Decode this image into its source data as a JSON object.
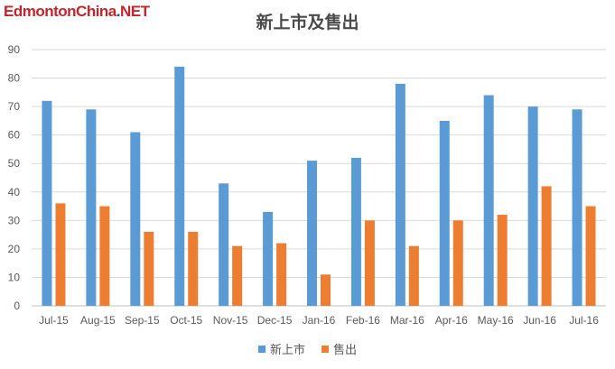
{
  "watermark": {
    "main": "EdmontonChina",
    "dot": ".",
    "suffix": "NET"
  },
  "colors": {
    "series1": "#5b9bd5",
    "series2": "#ed7d31",
    "grid": "#d9d9d9",
    "axis": "#bfbfbf"
  },
  "chart_data": {
    "type": "bar",
    "title": "新上市及售出",
    "xlabel": "",
    "ylabel": "",
    "ylim": [
      0,
      90
    ],
    "yticks": [
      0,
      10,
      20,
      30,
      40,
      50,
      60,
      70,
      80,
      90
    ],
    "grid": true,
    "legend_position": "bottom",
    "categories": [
      "Jul-15",
      "Aug-15",
      "Sep-15",
      "Oct-15",
      "Nov-15",
      "Dec-15",
      "Jan-16",
      "Feb-16",
      "Mar-16",
      "Apr-16",
      "May-16",
      "Jun-16",
      "Jul-16"
    ],
    "series": [
      {
        "name": "新上市",
        "values": [
          72,
          69,
          61,
          84,
          43,
          33,
          51,
          52,
          78,
          65,
          74,
          70,
          69
        ]
      },
      {
        "name": "售出",
        "values": [
          36,
          35,
          26,
          26,
          21,
          22,
          11,
          30,
          21,
          30,
          32,
          42,
          35
        ]
      }
    ]
  }
}
